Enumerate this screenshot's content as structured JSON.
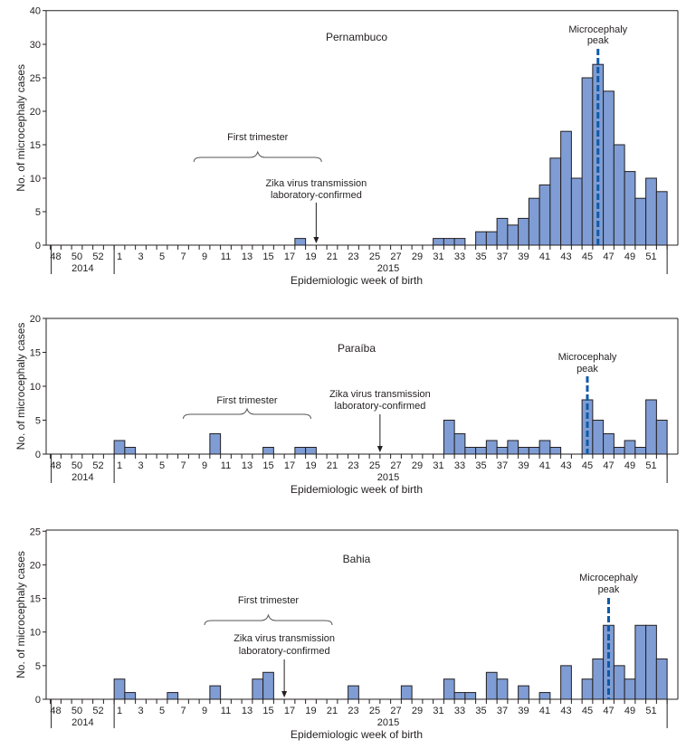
{
  "chart_data": [
    {
      "type": "bar",
      "title": "Pernambuco",
      "xlabel": "Epidemiologic week of birth",
      "ylabel": "No. of microcephaly cases",
      "ylim": [
        0,
        40
      ],
      "yticks": [
        0,
        5,
        10,
        15,
        20,
        25,
        30,
        40
      ],
      "year_labels": [
        "2014",
        "2015"
      ],
      "weeks_2014": [
        48,
        49,
        50,
        51,
        52,
        53
      ],
      "weeks_2015_from": 1,
      "weeks_2015_to": 52,
      "tick_labels_2014": [
        "48",
        "50",
        "52"
      ],
      "tick_labels_2015": [
        "1",
        "3",
        "5",
        "7",
        "9",
        "11",
        "13",
        "15",
        "17",
        "19",
        "21",
        "23",
        "25",
        "27",
        "29",
        "31",
        "33",
        "35",
        "37",
        "39",
        "41",
        "43",
        "45",
        "47",
        "49",
        "51"
      ],
      "values_2015": {
        "18": 1,
        "31": 1,
        "32": 1,
        "33": 1,
        "35": 2,
        "36": 2,
        "37": 4,
        "38": 3,
        "39": 4,
        "40": 7,
        "41": 9,
        "42": 13,
        "43": 17,
        "44": 10,
        "45": 25,
        "46": 27,
        "47": 23,
        "48": 15,
        "49": 11,
        "50": 7,
        "51": 10,
        "52": 8
      },
      "annotations": {
        "first_trimester": {
          "label": "First trimester",
          "from_week": 8,
          "to_week": 20
        },
        "zika_confirmed": {
          "label_line1": "Zika virus transmission",
          "label_line2": "laboratory-confirmed",
          "week": 20
        },
        "peak": {
          "label_line1": "Microcephaly",
          "label_line2": "peak",
          "week": 46
        }
      }
    },
    {
      "type": "bar",
      "title": "Paraíba",
      "xlabel": "Epidemiologic week of birth",
      "ylabel": "No. of microcephaly cases",
      "ylim": [
        0,
        20
      ],
      "yticks": [
        0,
        5,
        10,
        15,
        20
      ],
      "year_labels": [
        "2014",
        "2015"
      ],
      "weeks_2014": [
        48,
        49,
        50,
        51,
        52,
        53
      ],
      "weeks_2015_from": 1,
      "weeks_2015_to": 52,
      "tick_labels_2014": [
        "48",
        "50",
        "52"
      ],
      "tick_labels_2015": [
        "1",
        "3",
        "5",
        "7",
        "9",
        "11",
        "13",
        "15",
        "17",
        "19",
        "21",
        "23",
        "25",
        "27",
        "29",
        "31",
        "33",
        "35",
        "37",
        "39",
        "41",
        "43",
        "45",
        "47",
        "49",
        "51"
      ],
      "values_2015": {
        "1": 2,
        "2": 1,
        "10": 3,
        "15": 1,
        "18": 1,
        "19": 1,
        "32": 5,
        "33": 3,
        "34": 1,
        "35": 1,
        "36": 2,
        "37": 1,
        "38": 2,
        "39": 1,
        "40": 1,
        "41": 2,
        "42": 1,
        "45": 8,
        "46": 5,
        "47": 3,
        "48": 1,
        "49": 2,
        "50": 1,
        "51": 8,
        "52": 5
      },
      "annotations": {
        "first_trimester": {
          "label": "First trimester",
          "from_week": 7,
          "to_week": 19
        },
        "zika_confirmed": {
          "label_line1": "Zika virus transmission",
          "label_line2": "laboratory-confirmed",
          "week": 26
        },
        "peak": {
          "label_line1": "Microcephaly",
          "label_line2": "peak",
          "week": 45
        }
      }
    },
    {
      "type": "bar",
      "title": "Bahia",
      "xlabel": "Epidemiologic week of birth",
      "ylabel": "No. of microcephaly cases",
      "ylim": [
        0,
        25
      ],
      "yticks": [
        0,
        5,
        10,
        15,
        20,
        25
      ],
      "year_labels": [
        "2014",
        "2015"
      ],
      "weeks_2014": [
        48,
        49,
        50,
        51,
        52,
        53
      ],
      "weeks_2015_from": 1,
      "weeks_2015_to": 52,
      "tick_labels_2014": [
        "48",
        "50",
        "52"
      ],
      "tick_labels_2015": [
        "1",
        "3",
        "5",
        "7",
        "9",
        "11",
        "13",
        "15",
        "17",
        "19",
        "21",
        "23",
        "25",
        "27",
        "29",
        "31",
        "33",
        "35",
        "37",
        "39",
        "41",
        "43",
        "45",
        "47",
        "49",
        "51"
      ],
      "values_2015": {
        "1": 3,
        "2": 1,
        "6": 1,
        "10": 2,
        "14": 3,
        "15": 4,
        "23": 2,
        "28": 2,
        "32": 3,
        "33": 1,
        "34": 1,
        "36": 4,
        "37": 3,
        "39": 2,
        "41": 1,
        "43": 5,
        "45": 3,
        "46": 6,
        "47": 11,
        "48": 5,
        "49": 3,
        "50": 11,
        "51": 11,
        "52": 6
      },
      "annotations": {
        "first_trimester": {
          "label": "First trimester",
          "from_week": 9,
          "to_week": 21
        },
        "zika_confirmed": {
          "label_line1": "Zika virus transmission",
          "label_line2": "laboratory-confirmed",
          "week": 17
        },
        "peak": {
          "label_line1": "Microcephaly",
          "label_line2": "peak",
          "week": 47
        }
      }
    }
  ],
  "colors": {
    "bar_fill": "#7f9dd4",
    "bar_stroke": "#231f20",
    "peak_line": "#0f5aa8",
    "axis": "#231f20"
  }
}
